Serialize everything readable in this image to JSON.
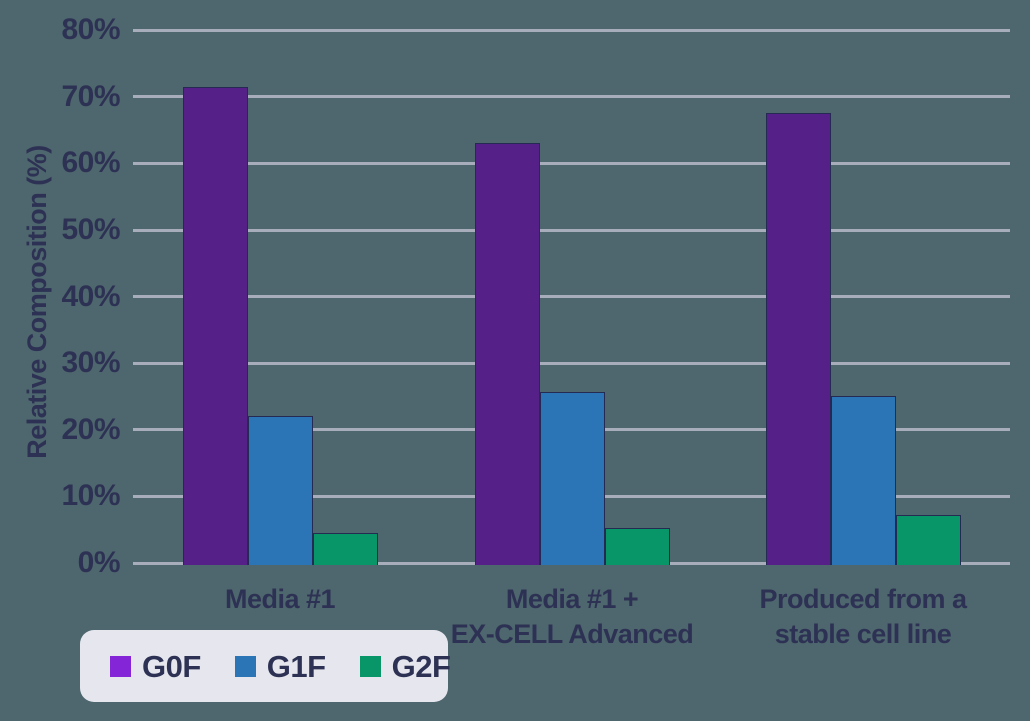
{
  "colors": {
    "background": "#4e666d",
    "gridline": "#a7adbb",
    "text": "#2d3254",
    "bar_border": "#252a52"
  },
  "legend": {
    "background": "#e6e7ee",
    "items": [
      {
        "label": "G0F",
        "swatch_color": "#8426d8"
      },
      {
        "label": "G1F",
        "swatch_color": "#2b74b5"
      },
      {
        "label": "G2F",
        "swatch_color": "#089669"
      }
    ]
  },
  "chart_data": {
    "type": "bar",
    "title": "",
    "xlabel": "",
    "ylabel": "Relative Composition (%)",
    "ylim": [
      0,
      80
    ],
    "ytick_step": 10,
    "ytick_labels": [
      "0%",
      "10%",
      "20%",
      "30%",
      "40%",
      "50%",
      "60%",
      "70%",
      "80%"
    ],
    "grid": true,
    "legend_position": "bottom-left",
    "categories": [
      "Media #1",
      "Media #1 +\nEX-CELL Advanced",
      "Produced from a\nstable cell line"
    ],
    "series": [
      {
        "name": "G0F",
        "color": "#552088",
        "values": [
          71.5,
          63.0,
          67.6
        ]
      },
      {
        "name": "G1F",
        "color": "#2b74b5",
        "values": [
          22.1,
          25.7,
          25.1
        ]
      },
      {
        "name": "G2F",
        "color": "#089669",
        "values": [
          4.5,
          5.2,
          7.2
        ]
      }
    ]
  }
}
